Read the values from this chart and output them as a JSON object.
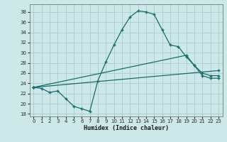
{
  "xlabel": "Humidex (Indice chaleur)",
  "ylabel": "",
  "xlim": [
    -0.5,
    23.5
  ],
  "ylim": [
    17.5,
    39.5
  ],
  "yticks": [
    18,
    20,
    22,
    24,
    26,
    28,
    30,
    32,
    34,
    36,
    38
  ],
  "xticks": [
    0,
    1,
    2,
    3,
    4,
    5,
    6,
    7,
    8,
    9,
    10,
    11,
    12,
    13,
    14,
    15,
    16,
    17,
    18,
    19,
    20,
    21,
    22,
    23
  ],
  "bg_color": "#cce8e8",
  "grid_color": "#aacccc",
  "line_color": "#1a6b6b",
  "line1_x": [
    0,
    1,
    2,
    3,
    4,
    5,
    6,
    7,
    8,
    9,
    10,
    11,
    12,
    13,
    14,
    15,
    16,
    17,
    18,
    19,
    20,
    21,
    22,
    23
  ],
  "line1_y": [
    23.2,
    23.0,
    22.2,
    22.5,
    21.0,
    19.5,
    19.0,
    18.5,
    24.5,
    28.2,
    31.5,
    34.5,
    37.0,
    38.2,
    38.0,
    37.5,
    34.5,
    31.5,
    31.2,
    29.2,
    27.5,
    25.5,
    25.0,
    25.0
  ],
  "line2_x": [
    0,
    19,
    20,
    21,
    22,
    23
  ],
  "line2_y": [
    23.2,
    29.5,
    27.5,
    26.0,
    25.5,
    25.5
  ],
  "line3_x": [
    0,
    23
  ],
  "line3_y": [
    23.2,
    26.5
  ]
}
